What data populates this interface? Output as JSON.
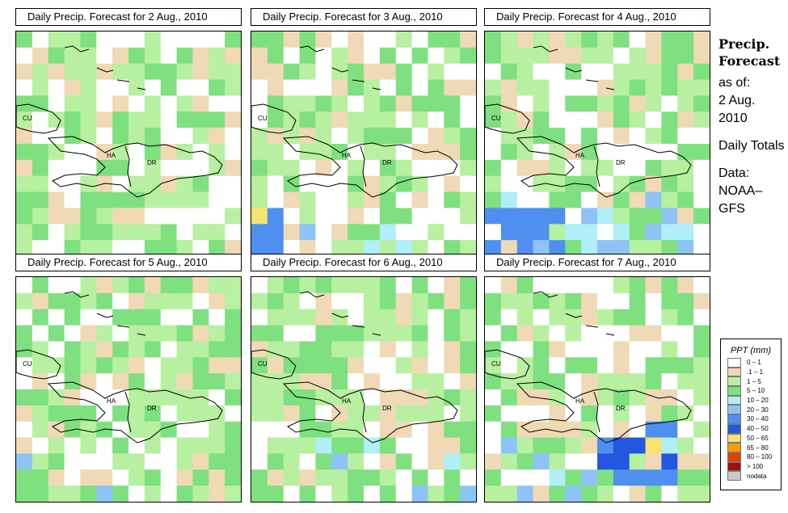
{
  "panels": [
    {
      "title": "Daily Precip. Forecast for  2 Aug., 2010",
      "seed": 11,
      "bias": 0.0,
      "hot": null
    },
    {
      "title": "Daily Precip. Forecast for  3 Aug., 2010",
      "seed": 23,
      "bias": 0.25,
      "hot": "sw"
    },
    {
      "title": "Daily Precip. Forecast for  4 Aug., 2010",
      "seed": 37,
      "bias": 0.35,
      "hot": "sw2"
    },
    {
      "title": "Daily Precip. Forecast for  5 Aug., 2010",
      "seed": 41,
      "bias": 0.05,
      "hot": null
    },
    {
      "title": "Daily Precip. Forecast for  6 Aug., 2010",
      "seed": 53,
      "bias": 0.1,
      "hot": null
    },
    {
      "title": "Daily Precip. Forecast for  7 Aug., 2010",
      "seed": 67,
      "bias": 0.3,
      "hot": "se"
    }
  ],
  "map_labels": {
    "cuba": "CU",
    "haiti": "HA",
    "dr": "DR"
  },
  "side": {
    "heading": "Precip. Forecast",
    "as_of_label": "as of:",
    "as_of_date": "2 Aug. 2010",
    "totals": "Daily Totals",
    "data_label": "Data:",
    "data_source": "NOAA–GFS"
  },
  "legend": {
    "title": "PPT (mm)",
    "items": [
      {
        "label": "0 – 1",
        "color": "#ffffff"
      },
      {
        "label": ".1 – 1",
        "color": "#f0d9b5"
      },
      {
        "label": "1 – 5",
        "color": "#b7f0a0"
      },
      {
        "label": "5 – 10",
        "color": "#7fe07f"
      },
      {
        "label": "10 – 20",
        "color": "#b0eef8"
      },
      {
        "label": "20 – 30",
        "color": "#8ec3f5"
      },
      {
        "label": "30 – 40",
        "color": "#4e8ff0"
      },
      {
        "label": "40 – 50",
        "color": "#2357e0"
      },
      {
        "label": "50 – 65",
        "color": "#f8e270"
      },
      {
        "label": "65 – 80",
        "color": "#ff9a00"
      },
      {
        "label": "80 – 100",
        "color": "#e04000"
      },
      {
        "label": "> 100",
        "color": "#a01010"
      },
      {
        "label": "nodata",
        "color": "#c8c8c8"
      }
    ]
  }
}
